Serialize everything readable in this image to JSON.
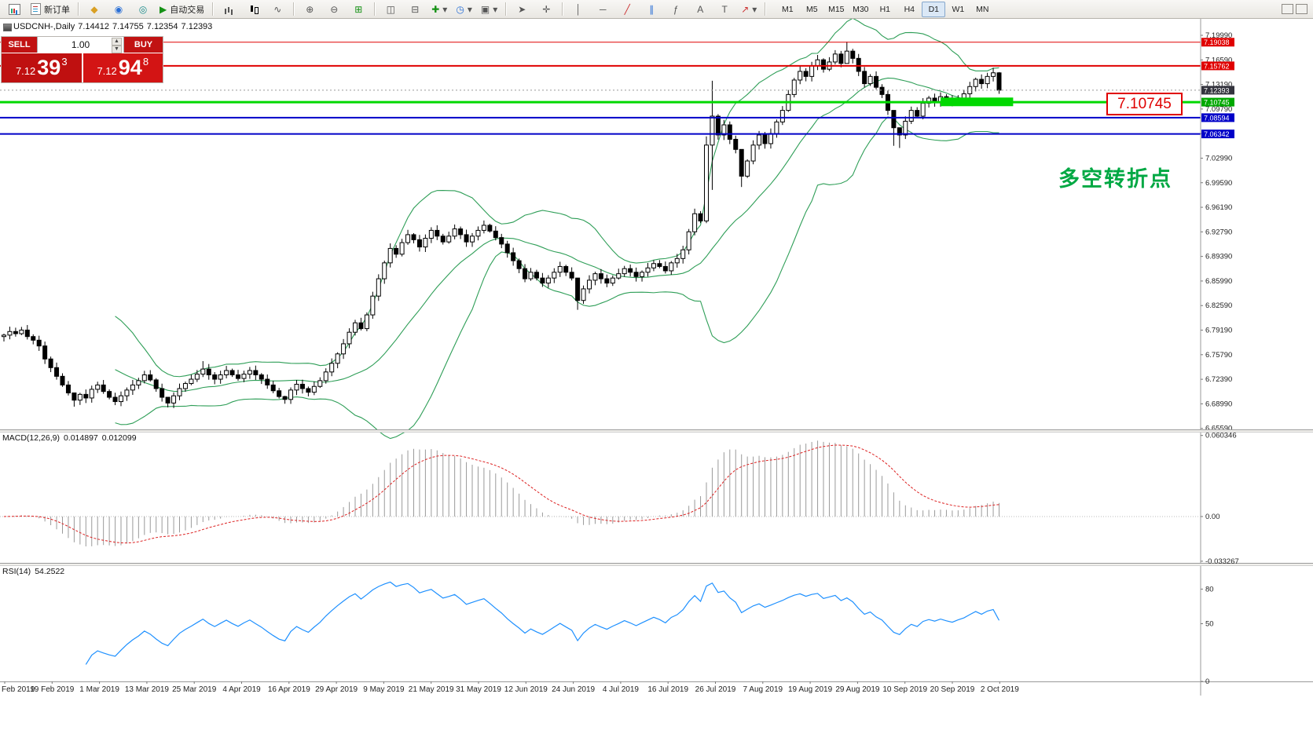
{
  "toolbar": {
    "new_order_label": "新订单",
    "autotrade_label": "自动交易",
    "timeframes": [
      "M1",
      "M5",
      "M15",
      "M30",
      "H1",
      "H4",
      "D1",
      "W1",
      "MN"
    ],
    "active_timeframe": "D1"
  },
  "icons": {
    "profiles": "◆",
    "data_window": "◉",
    "community": "◎",
    "autotrade_play": "▶",
    "zoom_in": "⊕",
    "zoom_out": "⊖",
    "grid": "⊞",
    "tile_h": "◫",
    "tile_v": "⊟",
    "indicators": "✚",
    "periods": "◷",
    "templates": "▣",
    "cursor": "➤",
    "crosshair": "✛",
    "vline": "│",
    "hline": "─",
    "trendline": "╱",
    "channel": "∥",
    "fibo": "ƒ",
    "text_tool": "A",
    "label_tool": "T",
    "arrow_tool": "↗",
    "dropdown": "▾",
    "line_glyph": "∿",
    "spin_up": "▲",
    "spin_down": "▼"
  },
  "chart_header": {
    "symbol": "USDCNH-,Daily",
    "open": "7.14412",
    "high": "7.14755",
    "low": "7.12354",
    "close": "7.12393"
  },
  "trade_panel": {
    "sell_label": "SELL",
    "buy_label": "BUY",
    "volume": "1.00",
    "sell_price_big": "7.12",
    "sell_price_pips": "39",
    "sell_price_sup": "3",
    "buy_price_big": "7.12",
    "buy_price_pips": "94",
    "buy_price_sup": "8"
  },
  "indicators": {
    "macd_label": "MACD(12,26,9)",
    "macd_value": "0.014897",
    "macd_signal_value": "0.012099",
    "rsi_label": "RSI(14)",
    "rsi_value": "54.2522"
  },
  "annotations": {
    "callout_price": "7.10745",
    "turning_point_text": "多空转折点"
  },
  "chart_data": {
    "type": "candlestick",
    "symbol": "USDCNH",
    "timeframe": "Daily",
    "title": "USDCNH-,Daily 7.14412 7.14755 7.12354 7.12393",
    "colors": {
      "bull": "#ffffff",
      "bear": "#000000",
      "bollinger": "#2e9e57",
      "macd_hist": "#9a9a9a",
      "macd_signal": "#dd2222",
      "rsi": "#1e90ff",
      "bid_label_bg": "#34343e",
      "hline_red": "#e00000",
      "hline_green": "#00d800",
      "hline_blue": "#0000c8"
    },
    "first_open": 6.783,
    "closes": [
      6.785,
      6.79,
      6.787,
      6.792,
      6.783,
      6.778,
      6.77,
      6.752,
      6.74,
      6.728,
      6.716,
      6.705,
      6.695,
      6.703,
      6.698,
      6.71,
      6.716,
      6.707,
      6.699,
      6.693,
      6.701,
      6.709,
      6.716,
      6.722,
      6.73,
      6.723,
      6.711,
      6.699,
      6.691,
      6.701,
      6.711,
      6.718,
      6.724,
      6.731,
      6.738,
      6.73,
      6.724,
      6.73,
      6.736,
      6.73,
      6.725,
      6.731,
      6.736,
      6.73,
      6.724,
      6.716,
      6.708,
      6.7,
      6.696,
      6.709,
      6.717,
      6.711,
      6.706,
      6.714,
      6.722,
      6.734,
      6.746,
      6.759,
      6.773,
      6.789,
      6.802,
      6.794,
      6.813,
      6.839,
      6.863,
      6.885,
      6.905,
      6.897,
      6.913,
      6.924,
      6.917,
      6.907,
      6.919,
      6.93,
      6.922,
      6.914,
      6.922,
      6.932,
      6.924,
      6.914,
      6.922,
      6.93,
      6.937,
      6.929,
      6.92,
      6.911,
      6.899,
      6.888,
      6.877,
      6.863,
      6.872,
      6.864,
      6.857,
      6.864,
      6.872,
      6.88,
      6.872,
      6.864,
      6.833,
      6.849,
      6.861,
      6.87,
      6.863,
      6.857,
      6.864,
      6.87,
      6.877,
      6.872,
      6.866,
      6.872,
      6.878,
      6.884,
      6.88,
      6.874,
      6.885,
      6.891,
      6.903,
      6.928,
      6.953,
      6.943,
      7.048,
      7.088,
      7.062,
      7.076,
      7.056,
      7.042,
      7.005,
      7.026,
      7.048,
      7.062,
      7.05,
      7.064,
      7.08,
      7.096,
      7.118,
      7.138,
      7.15,
      7.143,
      7.158,
      7.166,
      7.153,
      7.163,
      7.174,
      7.161,
      7.178,
      7.168,
      7.15,
      7.133,
      7.143,
      7.128,
      7.118,
      7.096,
      7.072,
      7.062,
      7.081,
      7.096,
      7.088,
      7.106,
      7.113,
      7.108,
      7.115,
      7.11,
      7.106,
      7.113,
      7.119,
      7.129,
      7.139,
      7.133,
      7.143,
      7.148,
      7.124
    ],
    "wick_overrides": {
      "12": [
        6.701,
        6.686
      ],
      "28": [
        6.696,
        6.685
      ],
      "34": [
        6.749,
        6.727
      ],
      "48": [
        6.701,
        6.69
      ],
      "98": [
        6.85,
        6.82
      ],
      "120": [
        7.06,
        6.94
      ],
      "121": [
        7.137,
        6.986
      ],
      "126": [
        7.03,
        6.99
      ],
      "144": [
        7.191,
        7.163
      ],
      "152": [
        7.08,
        7.047
      ],
      "153": [
        7.072,
        7.044
      ],
      "169": [
        7.155,
        7.136
      ],
      "170": [
        7.149,
        7.119
      ]
    },
    "bollinger": {
      "period": 20,
      "deviation": 2
    },
    "macd": {
      "fast": 12,
      "slow": 26,
      "signal": 9,
      "current_main": 0.014897,
      "current_signal": 0.012099,
      "axis_ticks": [
        "0.060346",
        "0.00",
        "-0.033267"
      ],
      "range": [
        -0.0345,
        0.0625
      ]
    },
    "rsi": {
      "period": 14,
      "current": 54.2522,
      "axis_ticks": [
        "80",
        "50",
        "0"
      ],
      "range": [
        0,
        100
      ]
    },
    "price_axis": {
      "min": 6.6545,
      "max": 7.2227,
      "ticks": [
        "7.19990",
        "7.16590",
        "7.13190",
        "7.09790",
        "7.06390",
        "7.02990",
        "6.99590",
        "6.96190",
        "6.92790",
        "6.89390",
        "6.85990",
        "6.82590",
        "6.79190",
        "6.75790",
        "6.72390",
        "6.68990",
        "6.65590"
      ]
    },
    "hlines": [
      {
        "price": 7.19038,
        "label": "7.19038",
        "color": "#e00000",
        "width": 1
      },
      {
        "price": 7.15762,
        "label": "7.15762",
        "color": "#e00000",
        "width": 2
      },
      {
        "price": 7.10745,
        "label": "7.10745",
        "color": "#00d800",
        "width": 3,
        "label_bg": "#00a800"
      },
      {
        "price": 7.08594,
        "label": "7.08594",
        "color": "#0000c8",
        "width": 2
      },
      {
        "price": 7.06342,
        "label": "7.06342",
        "color": "#0000c8",
        "width": 2
      }
    ],
    "bid": {
      "price": 7.12393,
      "label": "7.12393"
    },
    "highlight": {
      "from_bar": 160,
      "to_bar": 172.4,
      "price": 7.1078,
      "thickness": 11,
      "color": "#00d800"
    },
    "x_axis_dates": [
      "Feb 2019",
      "19 Feb 2019",
      "1 Mar 2019",
      "13 Mar 2019",
      "25 Mar 2019",
      "4 Apr 2019",
      "16 Apr 2019",
      "29 Apr 2019",
      "9 May 2019",
      "21 May 2019",
      "31 May 2019",
      "12 Jun 2019",
      "24 Jun 2019",
      "4 Jul 2019",
      "16 Jul 2019",
      "26 Jul 2019",
      "7 Aug 2019",
      "19 Aug 2019",
      "29 Aug 2019",
      "10 Sep 2019",
      "20 Sep 2019",
      "2 Oct 2019"
    ]
  }
}
